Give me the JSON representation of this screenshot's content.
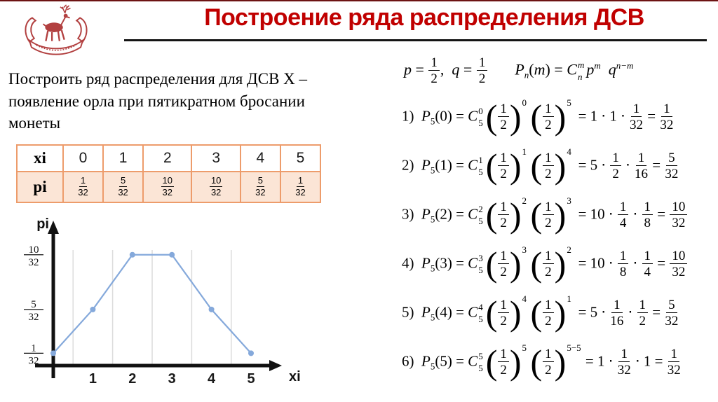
{
  "slide": {
    "title": "Построение ряда распределения ДСВ"
  },
  "colors": {
    "title_red": "#c00000",
    "top_border": "#6d1313",
    "table_border": "#ed9c6b",
    "table_fill": "#fbe5d6",
    "chart_line": "#85a9db",
    "chart_grid": "#dcdcdc",
    "axis": "#111111",
    "logo_red": "#b24040"
  },
  "problem_text": "Построить ряд распределения для ДСВ X – появление орла при пятикратном бросании монеты",
  "logo": {
    "name": "deer-emblem"
  },
  "table": {
    "row1_header": "xi",
    "row1_cells": [
      "0",
      "1",
      "2",
      "3",
      "4",
      "5"
    ],
    "row2_header": "pi",
    "row2_cells": [
      {
        "n": "1",
        "d": "32"
      },
      {
        "n": "5",
        "d": "32"
      },
      {
        "n": "10",
        "d": "32"
      },
      {
        "n": "10",
        "d": "32"
      },
      {
        "n": "5",
        "d": "32"
      },
      {
        "n": "1",
        "d": "32"
      }
    ]
  },
  "chart_data": {
    "type": "line",
    "title": "",
    "xlabel": "xi",
    "ylabel": "pi",
    "x": [
      0,
      1,
      2,
      3,
      4,
      5
    ],
    "values": [
      0.03125,
      0.15625,
      0.3125,
      0.3125,
      0.15625,
      0.03125
    ],
    "point_labels": [
      "1/32",
      "5/32",
      "10/32",
      "10/32",
      "5/32",
      "1/32"
    ],
    "xticks": [
      "1",
      "2",
      "3",
      "4",
      "5"
    ],
    "yticks": [
      {
        "n": "10",
        "d": "32",
        "v": 0.3125
      },
      {
        "n": "5",
        "d": "32",
        "v": 0.15625
      },
      {
        "n": "1",
        "d": "32",
        "v": 0.03125
      }
    ],
    "ylim": [
      0,
      0.4
    ],
    "grid": "vertical",
    "legend": false
  },
  "formulas": {
    "pq": [
      {
        "k": "i",
        "v": "p"
      },
      {
        "k": "n",
        "v": " = "
      },
      {
        "k": "f",
        "n": "1",
        "d": "2"
      },
      {
        "k": "n",
        "v": ",  "
      },
      {
        "k": "i",
        "v": "q"
      },
      {
        "k": "n",
        "v": " = "
      },
      {
        "k": "f",
        "n": "1",
        "d": "2"
      }
    ],
    "bernoulli": [
      {
        "k": "i",
        "v": "P"
      },
      {
        "k": "sub",
        "v": "n",
        "it": true
      },
      {
        "k": "n",
        "v": "("
      },
      {
        "k": "i",
        "v": "m"
      },
      {
        "k": "n",
        "v": ") = "
      },
      {
        "k": "i",
        "v": "C"
      },
      {
        "k": "ss",
        "a": "m",
        "b": "n",
        "it": true
      },
      {
        "k": "i",
        "v": "p"
      },
      {
        "k": "sup",
        "v": "m",
        "it": true
      },
      {
        "k": "n",
        "v": "  "
      },
      {
        "k": "i",
        "v": "q"
      },
      {
        "k": "sup",
        "v": "n−m",
        "it": true
      }
    ],
    "lines": [
      [
        {
          "k": "n",
          "v": "1)  "
        },
        {
          "k": "i",
          "v": "P"
        },
        {
          "k": "sub",
          "v": "5"
        },
        {
          "k": "n",
          "v": "(0) = "
        },
        {
          "k": "i",
          "v": "C"
        },
        {
          "k": "ss",
          "a": "0",
          "b": "5"
        },
        {
          "k": "pf",
          "n": "1",
          "d": "2",
          "e": "0"
        },
        {
          "k": "pf",
          "n": "1",
          "d": "2",
          "e": "5"
        },
        {
          "k": "n",
          "v": " = 1 ⋅ 1 ⋅ "
        },
        {
          "k": "f",
          "n": "1",
          "d": "32"
        },
        {
          "k": "n",
          "v": " = "
        },
        {
          "k": "f",
          "n": "1",
          "d": "32"
        }
      ],
      [
        {
          "k": "n",
          "v": "2)  "
        },
        {
          "k": "i",
          "v": "P"
        },
        {
          "k": "sub",
          "v": "5"
        },
        {
          "k": "n",
          "v": "(1) = "
        },
        {
          "k": "i",
          "v": "C"
        },
        {
          "k": "ss",
          "a": "1",
          "b": "5"
        },
        {
          "k": "pf",
          "n": "1",
          "d": "2",
          "e": "1"
        },
        {
          "k": "pf",
          "n": "1",
          "d": "2",
          "e": "4"
        },
        {
          "k": "n",
          "v": " = 5 ⋅ "
        },
        {
          "k": "f",
          "n": "1",
          "d": "2"
        },
        {
          "k": "n",
          "v": " ⋅ "
        },
        {
          "k": "f",
          "n": "1",
          "d": "16"
        },
        {
          "k": "n",
          "v": " = "
        },
        {
          "k": "f",
          "n": "5",
          "d": "32"
        }
      ],
      [
        {
          "k": "n",
          "v": "3)  "
        },
        {
          "k": "i",
          "v": "P"
        },
        {
          "k": "sub",
          "v": "5"
        },
        {
          "k": "n",
          "v": "(2) = "
        },
        {
          "k": "i",
          "v": "C"
        },
        {
          "k": "ss",
          "a": "2",
          "b": "5"
        },
        {
          "k": "pf",
          "n": "1",
          "d": "2",
          "e": "2"
        },
        {
          "k": "pf",
          "n": "1",
          "d": "2",
          "e": "3"
        },
        {
          "k": "n",
          "v": " = 10 ⋅ "
        },
        {
          "k": "f",
          "n": "1",
          "d": "4"
        },
        {
          "k": "n",
          "v": " ⋅ "
        },
        {
          "k": "f",
          "n": "1",
          "d": "8"
        },
        {
          "k": "n",
          "v": " = "
        },
        {
          "k": "f",
          "n": "10",
          "d": "32"
        }
      ],
      [
        {
          "k": "n",
          "v": "4)  "
        },
        {
          "k": "i",
          "v": "P"
        },
        {
          "k": "sub",
          "v": "5"
        },
        {
          "k": "n",
          "v": "(3) = "
        },
        {
          "k": "i",
          "v": "C"
        },
        {
          "k": "ss",
          "a": "3",
          "b": "5"
        },
        {
          "k": "pf",
          "n": "1",
          "d": "2",
          "e": "3"
        },
        {
          "k": "pf",
          "n": "1",
          "d": "2",
          "e": "2"
        },
        {
          "k": "n",
          "v": " = 10 ⋅ "
        },
        {
          "k": "f",
          "n": "1",
          "d": "8"
        },
        {
          "k": "n",
          "v": " ⋅ "
        },
        {
          "k": "f",
          "n": "1",
          "d": "4"
        },
        {
          "k": "n",
          "v": " = "
        },
        {
          "k": "f",
          "n": "10",
          "d": "32"
        }
      ],
      [
        {
          "k": "n",
          "v": "5)  "
        },
        {
          "k": "i",
          "v": "P"
        },
        {
          "k": "sub",
          "v": "5"
        },
        {
          "k": "n",
          "v": "(4) = "
        },
        {
          "k": "i",
          "v": "C"
        },
        {
          "k": "ss",
          "a": "4",
          "b": "5"
        },
        {
          "k": "pf",
          "n": "1",
          "d": "2",
          "e": "4"
        },
        {
          "k": "pf",
          "n": "1",
          "d": "2",
          "e": "1"
        },
        {
          "k": "n",
          "v": " = 5 ⋅ "
        },
        {
          "k": "f",
          "n": "1",
          "d": "16"
        },
        {
          "k": "n",
          "v": " ⋅ "
        },
        {
          "k": "f",
          "n": "1",
          "d": "2"
        },
        {
          "k": "n",
          "v": " = "
        },
        {
          "k": "f",
          "n": "5",
          "d": "32"
        }
      ],
      [
        {
          "k": "n",
          "v": "6)  "
        },
        {
          "k": "i",
          "v": "P"
        },
        {
          "k": "sub",
          "v": "5"
        },
        {
          "k": "n",
          "v": "(5) = "
        },
        {
          "k": "i",
          "v": "C"
        },
        {
          "k": "ss",
          "a": "5",
          "b": "5"
        },
        {
          "k": "pf",
          "n": "1",
          "d": "2",
          "e": "5"
        },
        {
          "k": "pf",
          "n": "1",
          "d": "2",
          "e": "5−5"
        },
        {
          "k": "n",
          "v": " = 1 ⋅ "
        },
        {
          "k": "f",
          "n": "1",
          "d": "32"
        },
        {
          "k": "n",
          "v": " ⋅ 1 = "
        },
        {
          "k": "f",
          "n": "1",
          "d": "32"
        }
      ]
    ]
  }
}
